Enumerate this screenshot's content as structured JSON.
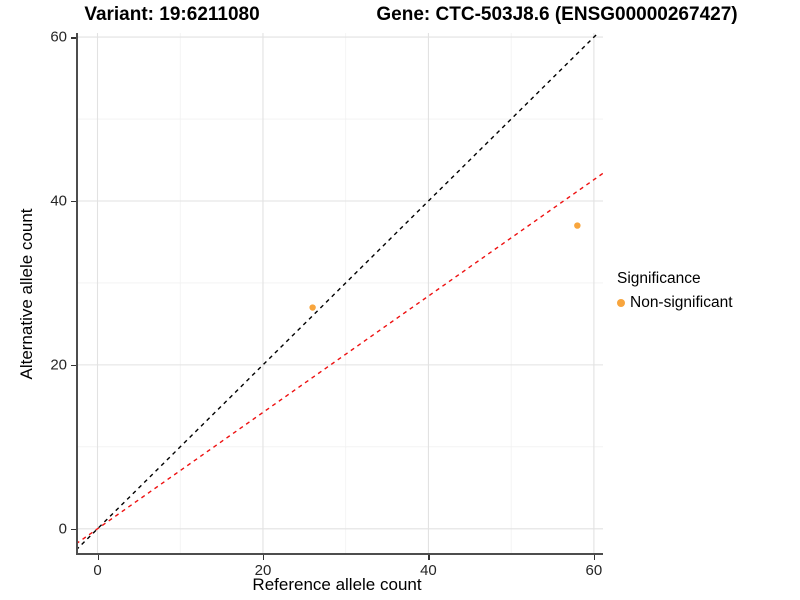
{
  "titles": {
    "variant": "Variant: 19:6211080",
    "gene": "Gene: CTC-503J8.6 (ENSG00000267427)"
  },
  "legend": {
    "title": "Significance",
    "items": [
      {
        "label": "Non-significant",
        "color": "#F8A53D"
      }
    ]
  },
  "chart_data": {
    "type": "scatter",
    "title": "Variant: 19:6211080 | Gene: CTC-503J8.6 (ENSG00000267427)",
    "xlabel": "Reference allele count",
    "ylabel": "Alternative allele count",
    "xlim": [
      -2.6,
      61.1
    ],
    "ylim": [
      -3.2,
      60.5
    ],
    "x_ticks": [
      0,
      20,
      40,
      60
    ],
    "y_ticks": [
      0,
      20,
      40,
      60
    ],
    "x_minor_ticks": [
      10,
      30,
      50
    ],
    "y_minor_ticks": [
      10,
      30,
      50
    ],
    "grid": true,
    "legend_position": "right",
    "series": [
      {
        "name": "Non-significant",
        "color": "#F8A53D",
        "point_radius": 3.2,
        "points": [
          [
            26,
            27
          ],
          [
            58,
            37
          ]
        ]
      }
    ],
    "lines": [
      {
        "name": "identity-line",
        "slope": 1.0,
        "intercept": 0,
        "color": "#000000",
        "dash": "4 4",
        "width": 1.4
      },
      {
        "name": "fit-line",
        "slope": 0.71,
        "intercept": 0,
        "color": "#EE1111",
        "dash": "4 4",
        "width": 1.4
      }
    ],
    "style": {
      "major_grid_color": "#E2E2E2",
      "minor_grid_color": "#F1F1F1",
      "axis_line_color": "#4D4D4D",
      "tick_color": "#333333",
      "panel_background": "#FFFFFF"
    }
  }
}
